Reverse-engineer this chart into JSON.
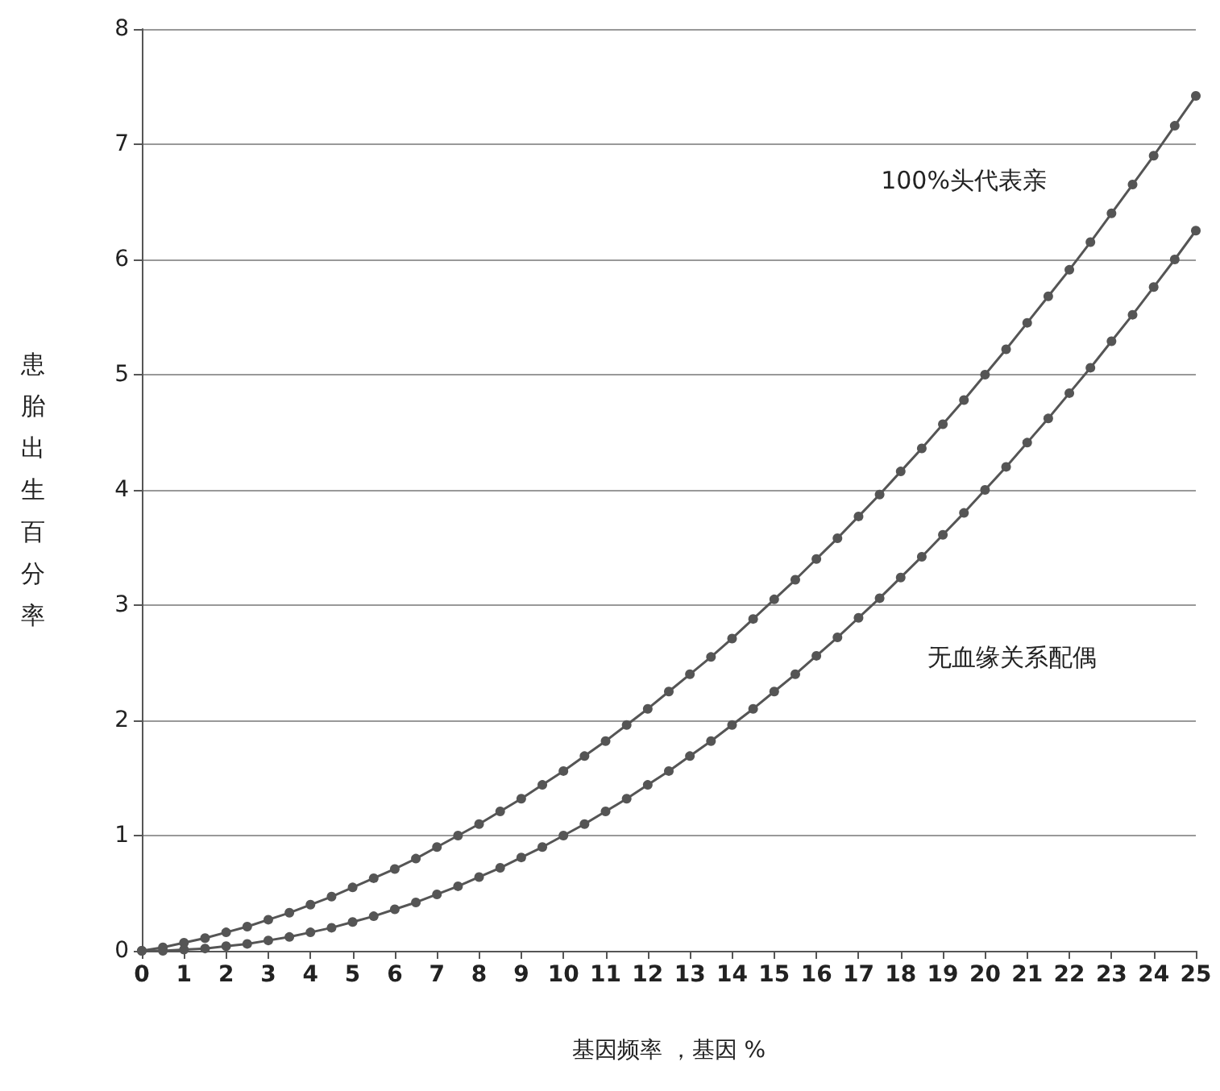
{
  "chart_data": {
    "type": "line",
    "xlabel": "基因频率 ，基因 %",
    "ylabel": "患胎出生百分率",
    "x": [
      0,
      0.5,
      1,
      1.5,
      2,
      2.5,
      3,
      3.5,
      4,
      4.5,
      5,
      5.5,
      6,
      6.5,
      7,
      7.5,
      8,
      8.5,
      9,
      9.5,
      10,
      10.5,
      11,
      11.5,
      12,
      12.5,
      13,
      13.5,
      14,
      14.5,
      15,
      15.5,
      16,
      16.5,
      17,
      17.5,
      18,
      18.5,
      19,
      19.5,
      20,
      20.5,
      21,
      21.5,
      22,
      22.5,
      23,
      23.5,
      24,
      24.5,
      25
    ],
    "series": [
      {
        "color": "#555555",
        "values": [
          0,
          0.03,
          0.07,
          0.11,
          0.16,
          0.21,
          0.27,
          0.33,
          0.4,
          0.47,
          0.55,
          0.63,
          0.71,
          0.8,
          0.9,
          1.0,
          1.1,
          1.21,
          1.32,
          1.44,
          1.56,
          1.69,
          1.82,
          1.96,
          2.1,
          2.25,
          2.4,
          2.55,
          2.71,
          2.88,
          3.05,
          3.22,
          3.4,
          3.58,
          3.77,
          3.96,
          4.16,
          4.36,
          4.57,
          4.78,
          5.0,
          5.22,
          5.45,
          5.68,
          5.91,
          6.15,
          6.4,
          6.65,
          6.9,
          7.16,
          7.42
        ]
      },
      {
        "color": "#555555",
        "values": [
          0,
          0,
          0.01,
          0.02,
          0.04,
          0.06,
          0.09,
          0.12,
          0.16,
          0.2,
          0.25,
          0.3,
          0.36,
          0.42,
          0.49,
          0.56,
          0.64,
          0.72,
          0.81,
          0.9,
          1.0,
          1.1,
          1.21,
          1.32,
          1.44,
          1.56,
          1.69,
          1.82,
          1.96,
          2.1,
          2.25,
          2.4,
          2.56,
          2.72,
          2.89,
          3.06,
          3.24,
          3.42,
          3.61,
          3.8,
          4.0,
          4.2,
          4.41,
          4.62,
          4.84,
          5.06,
          5.29,
          5.52,
          5.76,
          6.0,
          6.25
        ]
      }
    ],
    "xlim": [
      0,
      25
    ],
    "xticks": [
      0,
      1,
      2,
      3,
      4,
      5,
      6,
      7,
      8,
      9,
      10,
      11,
      12,
      13,
      14,
      15,
      16,
      17,
      18,
      19,
      20,
      21,
      22,
      23,
      24,
      25
    ],
    "ylim": [
      0,
      8
    ],
    "yticks": [
      0,
      1,
      2,
      3,
      4,
      5,
      6,
      7,
      8
    ],
    "grid": "y",
    "marker": "circle",
    "line_style": "solid",
    "annotations": [
      "100%头代表亲",
      "无血缘关系配偶"
    ]
  }
}
